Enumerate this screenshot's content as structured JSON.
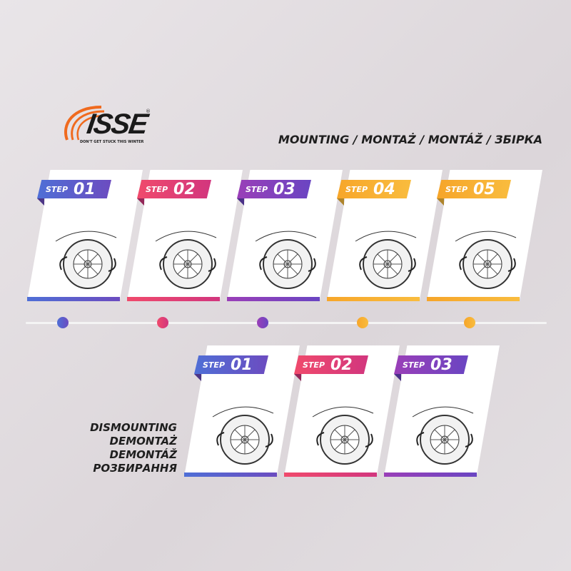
{
  "logo": {
    "name": "ISSE",
    "tagline": "DON'T GET STUCK THIS WINTER",
    "registered": "®"
  },
  "heading": "MOUNTING / MONTAŻ / MONTÁŽ / ЗБІРКА",
  "mounting_steps": [
    {
      "label": "STEP",
      "number": "01",
      "color_from": "#4f6fd6",
      "color_to": "#6c4cc0"
    },
    {
      "label": "STEP",
      "number": "02",
      "color_from": "#f04a6c",
      "color_to": "#d2367e"
    },
    {
      "label": "STEP",
      "number": "03",
      "color_from": "#9a3fb8",
      "color_to": "#6a45c2"
    },
    {
      "label": "STEP",
      "number": "04",
      "color_from": "#f7a62a",
      "color_to": "#f9bc3e"
    },
    {
      "label": "STEP",
      "number": "05",
      "color_from": "#f6a52a",
      "color_to": "#f9bc3e"
    }
  ],
  "dismounting_steps": [
    {
      "label": "STEP",
      "number": "01",
      "color_from": "#4f6fd6",
      "color_to": "#6c4cc0"
    },
    {
      "label": "STEP",
      "number": "02",
      "color_from": "#f04a6c",
      "color_to": "#d2367e"
    },
    {
      "label": "STEP",
      "number": "03",
      "color_from": "#9a3fb8",
      "color_to": "#6a45c2"
    }
  ],
  "dismounting_title": [
    "DISMOUNTING",
    "DEMONTAŻ",
    "DEMONTÁŽ",
    "РОЗБИРАННЯ"
  ],
  "colors": {
    "brand_orange": "#f06a1e",
    "timeline": "#f4f4f4"
  }
}
